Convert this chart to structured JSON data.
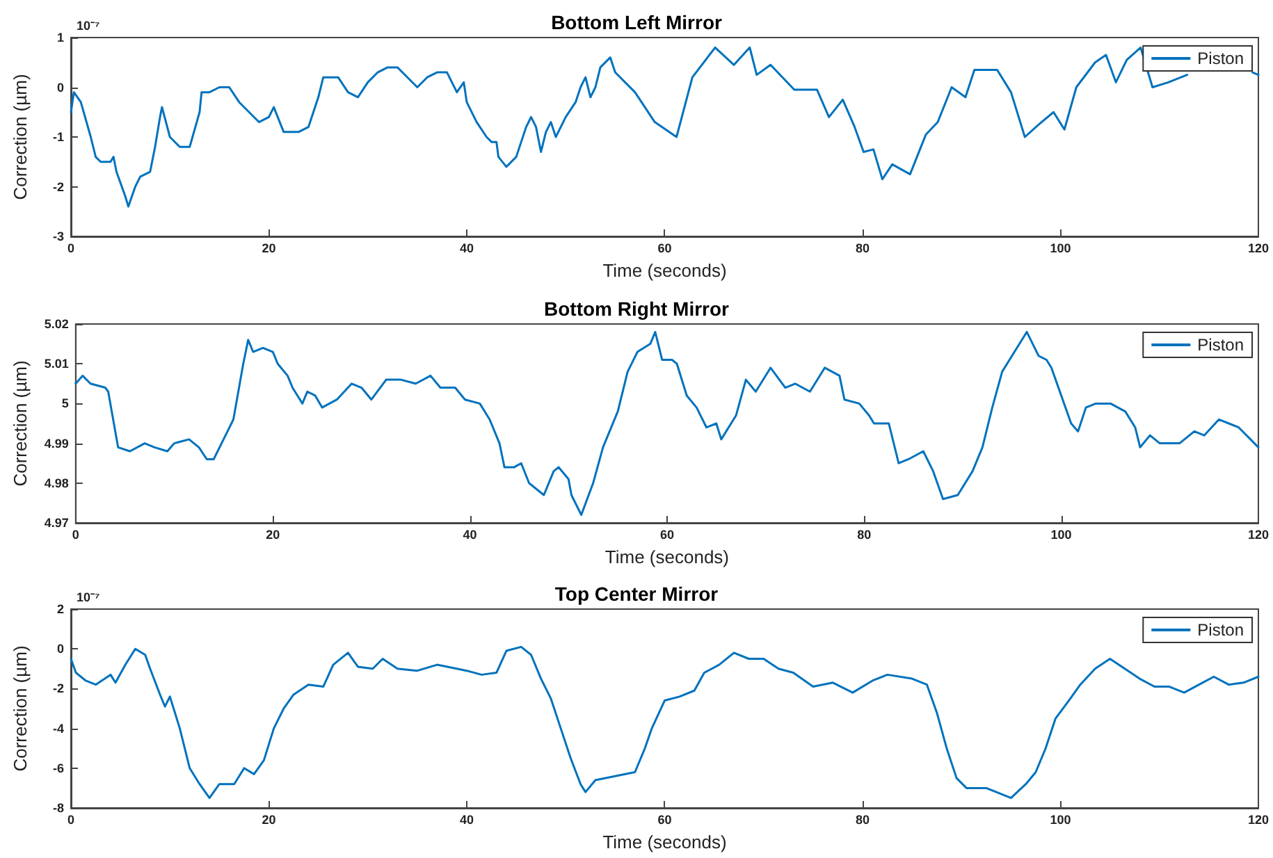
{
  "chart_data": [
    {
      "type": "line",
      "title": "Bottom Left Mirror",
      "xlabel": "Time (seconds)",
      "ylabel": "Correction (µm)",
      "annotations": [
        "10⁻⁷"
      ],
      "legend": "top right",
      "marker": "none",
      "xlim": [
        0,
        120
      ],
      "xticks": [
        0,
        20,
        40,
        60,
        80,
        100,
        120
      ],
      "ylim": [
        -3,
        1
      ],
      "yticks": [
        -3,
        -2,
        -1,
        0,
        1
      ],
      "x": [
        0,
        0.3,
        1,
        2,
        2.5,
        3,
        4,
        4.3,
        4.6,
        5.5,
        5.8,
        6.5,
        7,
        8,
        8.5,
        9,
        9.2,
        10,
        11,
        12,
        13,
        13.2,
        14,
        15,
        16,
        17,
        18,
        19,
        20,
        20.5,
        21.5,
        23,
        24,
        25,
        25.5,
        26,
        27,
        28,
        29,
        30,
        31,
        32,
        33,
        34,
        35,
        36,
        37,
        38,
        38.5,
        39,
        39.7,
        40,
        41,
        42,
        42.5,
        43,
        43.2,
        44,
        45,
        45.5,
        46,
        46.5,
        47,
        47.5,
        48,
        48.5,
        49,
        50,
        51,
        51.5,
        52,
        52.5,
        53,
        53.5,
        54.5,
        55,
        56,
        57,
        59,
        61.2,
        62.8,
        65.1,
        67,
        68.6,
        69.3,
        70.7,
        73.1,
        75.4,
        76.6,
        78,
        79.2,
        80.1,
        81.1,
        82,
        83,
        84.8,
        86.4,
        87.6,
        89,
        90.4,
        91.3,
        93.6,
        95,
        96.4,
        97.8,
        99.3,
        100.4,
        101.6,
        103.5,
        104.6,
        105.6,
        106.7,
        108.1,
        109.3,
        110.9,
        112.8,
        116,
        119.4,
        120
      ],
      "series": [
        {
          "name": "Piston",
          "color": "#0072bd",
          "values": [
            -0.5,
            -0.1,
            -0.3,
            -1.0,
            -1.4,
            -1.5,
            -1.5,
            -1.4,
            -1.7,
            -2.2,
            -2.4,
            -2.0,
            -1.8,
            -1.7,
            -1.2,
            -0.6,
            -0.4,
            -1.0,
            -1.2,
            -1.2,
            -0.5,
            -0.1,
            -0.1,
            0.0,
            0.0,
            -0.3,
            -0.5,
            -0.7,
            -0.6,
            -0.4,
            -0.9,
            -0.9,
            -0.8,
            -0.2,
            0.2,
            0.2,
            0.2,
            -0.1,
            -0.2,
            0.1,
            0.3,
            0.4,
            0.4,
            0.2,
            0.0,
            0.2,
            0.3,
            0.3,
            0.1,
            -0.1,
            0.1,
            -0.3,
            -0.7,
            -1.0,
            -1.1,
            -1.1,
            -1.4,
            -1.6,
            -1.4,
            -1.1,
            -0.8,
            -0.6,
            -0.8,
            -1.3,
            -0.9,
            -0.7,
            -1.0,
            -0.6,
            -0.3,
            0.0,
            0.2,
            -0.2,
            0.0,
            0.4,
            0.6,
            0.3,
            0.1,
            -0.1,
            -0.7,
            -1.0,
            0.2,
            0.8,
            0.45,
            0.8,
            0.25,
            0.45,
            -0.05,
            -0.05,
            -0.6,
            -0.25,
            -0.8,
            -1.3,
            -1.25,
            -1.85,
            -1.55,
            -1.75,
            -0.95,
            -0.7,
            0.0,
            -0.2,
            0.35,
            0.35,
            -0.1,
            -1.0,
            -0.75,
            -0.5,
            -0.85,
            0.0,
            0.5,
            0.65,
            0.1,
            0.55,
            0.8,
            0.0,
            0.1,
            0.25,
            null,
            0.3,
            0.25
          ]
        }
      ]
    },
    {
      "type": "line",
      "title": "Bottom Right Mirror",
      "xlabel": "Time (seconds)",
      "ylabel": "Correction (µm)",
      "legend": "top right",
      "marker": "none",
      "xlim": [
        0,
        120
      ],
      "xticks": [
        0,
        20,
        40,
        60,
        80,
        100,
        120
      ],
      "ylim": [
        4.97,
        5.02
      ],
      "yticks": [
        4.97,
        4.98,
        4.99,
        5,
        5.01,
        5.02
      ],
      "x": [
        0,
        0.7,
        1.5,
        3,
        3.3,
        4.3,
        5.5,
        7,
        8,
        9.3,
        10,
        11.5,
        12.5,
        13.3,
        14,
        15,
        16,
        16.5,
        17,
        17.5,
        18,
        19,
        20,
        20.5,
        21.5,
        22,
        22.5,
        23,
        23.5,
        24.3,
        25,
        26.5,
        28,
        29,
        30,
        31.5,
        33,
        34.5,
        36,
        37,
        38.5,
        39.5,
        41,
        42,
        43,
        43.5,
        44.5,
        45.2,
        46,
        47.5,
        48.5,
        49,
        50,
        50.3,
        51.3,
        52.5,
        53.5,
        55,
        56,
        57,
        58.3,
        58.8,
        59.5,
        60.5,
        61,
        62,
        63,
        64,
        65,
        65.5,
        67,
        68,
        69,
        70.5,
        72,
        73,
        74.5,
        76,
        77.5,
        78,
        79.5,
        80.5,
        81,
        82.5,
        83.5,
        84.5,
        86,
        87,
        88,
        89.5,
        91,
        92,
        93,
        94,
        95,
        96.5,
        97.7,
        98.5,
        99,
        100,
        101,
        101.7,
        102.5,
        103.5,
        105,
        106.5,
        107.5,
        108,
        109,
        110,
        112,
        113.5,
        114.5,
        116,
        117,
        118,
        119.2,
        120
      ],
      "series": [
        {
          "name": "Piston",
          "color": "#0072bd",
          "values": [
            5.005,
            5.007,
            5.005,
            5.004,
            5.003,
            4.989,
            4.988,
            4.99,
            4.989,
            4.988,
            4.99,
            4.991,
            4.989,
            4.986,
            4.986,
            4.991,
            4.996,
            5.003,
            5.01,
            5.016,
            5.013,
            5.014,
            5.013,
            5.01,
            5.007,
            5.004,
            5.002,
            5.0,
            5.003,
            5.002,
            4.999,
            5.001,
            5.005,
            5.004,
            5.001,
            5.006,
            5.006,
            5.005,
            5.007,
            5.004,
            5.004,
            5.001,
            5.0,
            4.996,
            4.99,
            4.984,
            4.984,
            4.985,
            4.98,
            4.977,
            4.983,
            4.984,
            4.981,
            4.977,
            4.972,
            4.98,
            4.989,
            4.998,
            5.008,
            5.013,
            5.015,
            5.018,
            5.011,
            5.011,
            5.01,
            5.002,
            4.999,
            4.994,
            4.995,
            4.991,
            4.997,
            5.006,
            5.003,
            5.009,
            5.004,
            5.005,
            5.003,
            5.009,
            5.007,
            5.001,
            5.0,
            4.997,
            4.995,
            4.995,
            4.985,
            4.986,
            4.988,
            4.983,
            4.976,
            4.977,
            4.983,
            4.989,
            4.999,
            5.008,
            5.012,
            5.018,
            5.012,
            5.011,
            5.009,
            5.002,
            4.995,
            4.993,
            4.999,
            5.0,
            5.0,
            4.998,
            4.994,
            4.989,
            4.992,
            4.99,
            4.99,
            4.993,
            4.992,
            4.996,
            4.995,
            4.994,
            4.991,
            4.989
          ]
        }
      ]
    },
    {
      "type": "line",
      "title": "Top Center Mirror",
      "xlabel": "Time (seconds)",
      "ylabel": "Correction (µm)",
      "annotations": [
        "10⁻⁷"
      ],
      "legend": "top right",
      "marker": "none",
      "xlim": [
        0,
        120
      ],
      "xticks": [
        0,
        20,
        40,
        60,
        80,
        100,
        120
      ],
      "ylim": [
        -8,
        2
      ],
      "yticks": [
        -8,
        -6,
        -4,
        -2,
        0,
        2
      ],
      "x": [
        0,
        0.5,
        1.5,
        2.5,
        4,
        4.5,
        5.5,
        6.5,
        7.5,
        8,
        9,
        9.5,
        10,
        11,
        12,
        13,
        14,
        15,
        16.5,
        17.5,
        18.5,
        19.5,
        20.5,
        21.5,
        22.5,
        24,
        25.5,
        26.5,
        28,
        29,
        30.5,
        31.5,
        33,
        35,
        37,
        39,
        40,
        41.5,
        43,
        44,
        45.5,
        46.5,
        47.5,
        48.5,
        49.5,
        50.5,
        51.5,
        52,
        53,
        55,
        57,
        58,
        58.7,
        60,
        61.5,
        63,
        64,
        65.5,
        67,
        68.5,
        70,
        71.5,
        73,
        75,
        77,
        79,
        81,
        82.5,
        85,
        86.5,
        87.5,
        88.5,
        89.5,
        90.5,
        92.5,
        95,
        96.5,
        97.5,
        98.5,
        99.5,
        101,
        102,
        103.5,
        105,
        106.5,
        108,
        109.5,
        111,
        112.5,
        114,
        115.5,
        117,
        118.5,
        120
      ],
      "series": [
        {
          "name": "Piston",
          "color": "#0072bd",
          "values": [
            -0.5,
            -1.2,
            -1.6,
            -1.8,
            -1.3,
            -1.7,
            -0.8,
            0.0,
            -0.3,
            -1.0,
            -2.3,
            -2.9,
            -2.4,
            -4.0,
            -6.0,
            -6.8,
            -7.5,
            -6.8,
            -6.8,
            -6.0,
            -6.3,
            -5.6,
            -4.0,
            -3.0,
            -2.3,
            -1.8,
            -1.9,
            -0.8,
            -0.2,
            -0.9,
            -1.0,
            -0.5,
            -1.0,
            -1.1,
            -0.8,
            -1.0,
            -1.1,
            -1.3,
            -1.2,
            -0.1,
            0.1,
            -0.3,
            -1.5,
            -2.5,
            -4.0,
            -5.5,
            -6.8,
            -7.2,
            -6.6,
            -6.4,
            -6.2,
            -5.0,
            -4.0,
            -2.6,
            -2.4,
            -2.1,
            -1.2,
            -0.8,
            -0.2,
            -0.5,
            -0.5,
            -1.0,
            -1.2,
            -1.9,
            -1.7,
            -2.2,
            -1.6,
            -1.3,
            -1.5,
            -1.8,
            -3.2,
            -5.0,
            -6.5,
            -7.0,
            -7.0,
            -7.5,
            -6.8,
            -6.2,
            -5.0,
            -3.5,
            -2.5,
            -1.8,
            -1.0,
            -0.5,
            -1.0,
            -1.5,
            -1.9,
            -1.9,
            -2.2,
            -1.8,
            -1.4,
            -1.8,
            -1.7,
            -1.4
          ]
        }
      ]
    }
  ]
}
